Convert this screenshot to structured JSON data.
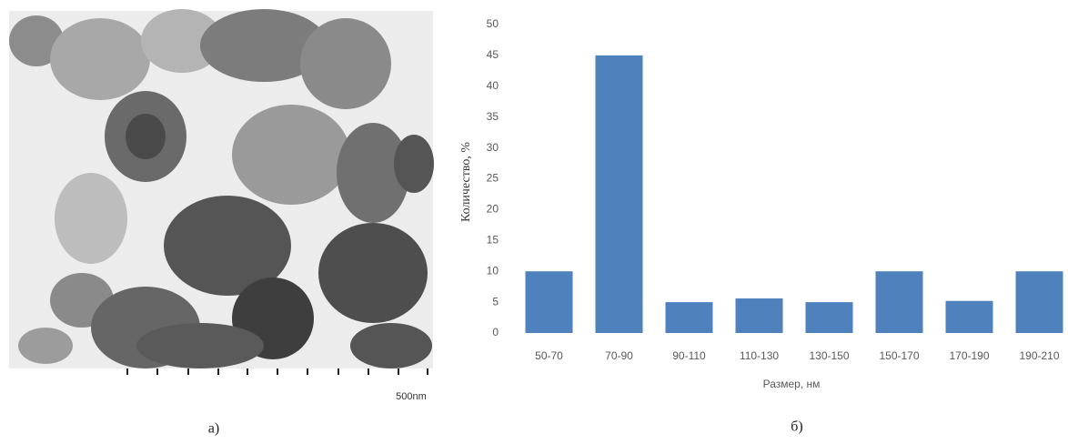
{
  "image": {
    "scale_label": "500nm",
    "caption": "а)"
  },
  "chart_data": {
    "type": "bar",
    "caption": "б)",
    "x_label": "Размер, нм",
    "y_label": "Количество, %",
    "categories": [
      "50-70",
      "70-90",
      "90-110",
      "110-130",
      "130-150",
      "150-170",
      "170-190",
      "190-210"
    ],
    "values": [
      10,
      45,
      5,
      5.6,
      5,
      10,
      5.2,
      10
    ],
    "color": "#4f81bd",
    "ylim": [
      0,
      50
    ],
    "yticks": [
      0,
      5,
      10,
      15,
      20,
      25,
      30,
      35,
      40,
      45,
      50
    ],
    "grid": false
  }
}
